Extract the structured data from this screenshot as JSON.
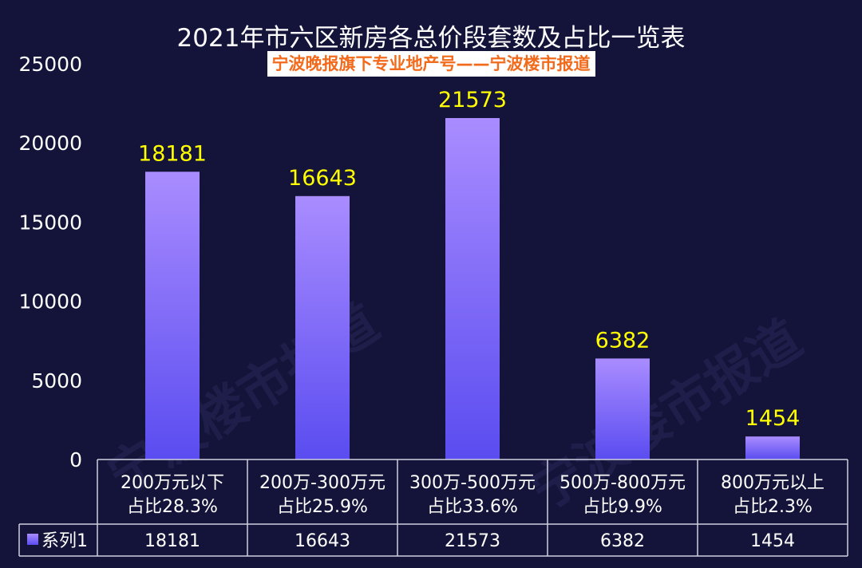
{
  "chart_data": {
    "type": "bar",
    "title": "2021年市六区新房各总价段套数及占比一览表",
    "subtitle": "宁波晚报旗下专业地产号——宁波楼市报道",
    "watermark": "宁波楼市报道",
    "categories": [
      [
        "200万元以下",
        "占比28.3%"
      ],
      [
        "200万-300万元",
        "占比25.9%"
      ],
      [
        "300万-500万元",
        "占比33.6%"
      ],
      [
        "500万-800万元",
        "占比9.9%"
      ],
      [
        "800万元以上",
        "占比2.3%"
      ]
    ],
    "series": [
      {
        "name": "系列1",
        "values": [
          18181,
          16643,
          21573,
          6382,
          1454
        ]
      }
    ],
    "ylim": [
      0,
      25000
    ],
    "yticks": [
      0,
      5000,
      10000,
      15000,
      20000,
      25000
    ],
    "data_labels": true,
    "data_table": true,
    "grid": false,
    "colors": {
      "bar_top": "#a98cff",
      "bar_bottom": "#5a4cf0",
      "label": "#ffff00",
      "background": "#14143a"
    }
  }
}
